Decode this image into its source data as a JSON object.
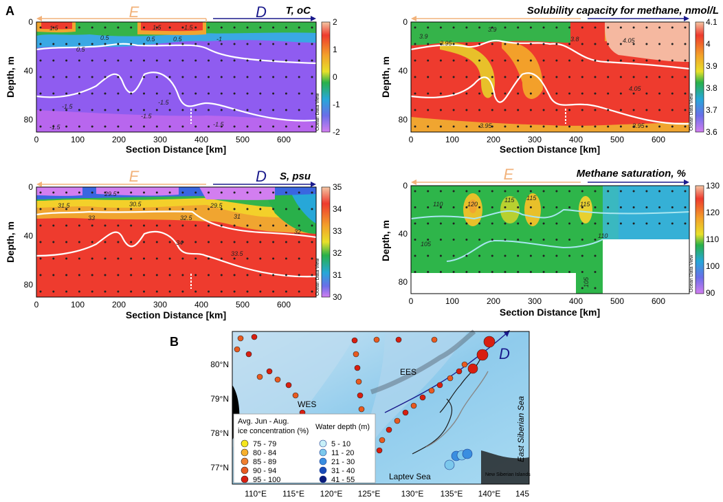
{
  "figure": {
    "panel_a_label": "A",
    "panel_b_label": "B",
    "odv_tag": "Ocean Data View",
    "transect_labels": {
      "e": "E",
      "d": "D"
    }
  },
  "colors": {
    "e_arrow": "#f2b27a",
    "d_arrow": "#1a1a8c",
    "isoline": "#ffffff"
  },
  "chart_data": [
    {
      "type": "heatmap",
      "id": "temperature",
      "title": "T, oC",
      "xlabel": "Section Distance [km]",
      "ylabel": "Depth, m",
      "xlim": [
        0,
        680
      ],
      "ylim": [
        0,
        90
      ],
      "xticks": [
        "0",
        "100",
        "200",
        "300",
        "400",
        "500",
        "600"
      ],
      "yticks": [
        "0",
        "40",
        "80"
      ],
      "colorbar": {
        "min": -2,
        "max": 2,
        "ticks": [
          "2",
          "1",
          "0",
          "-1",
          "-2"
        ]
      },
      "contour_labels": [
        "1.5",
        "0.5",
        "0.5",
        "1.5",
        "0.5",
        "0.5",
        "1.5",
        "-1",
        "-1.5",
        "-1.5",
        "-1.5",
        "-1.5",
        "-1.5"
      ]
    },
    {
      "type": "heatmap",
      "id": "solubility",
      "title": "Solubility capacity for methane, nmol/L",
      "xlabel": "Section Distance [km]",
      "ylabel": "Depth, m",
      "xlim": [
        0,
        680
      ],
      "ylim": [
        0,
        90
      ],
      "xticks": [
        "0",
        "100",
        "200",
        "300",
        "400",
        "500",
        "600"
      ],
      "yticks": [
        "0",
        "40",
        "80"
      ],
      "colorbar": {
        "min": 3.6,
        "max": 4.1,
        "ticks": [
          "4.1",
          "4",
          "3.9",
          "3.8",
          "3.7",
          "3.6"
        ]
      },
      "contour_labels": [
        "3.9",
        "3.95",
        "3.8",
        "3.9",
        "4.05",
        "4.05",
        "3.95",
        "3.95"
      ]
    },
    {
      "type": "heatmap",
      "id": "salinity",
      "title": "S, psu",
      "xlabel": "Section Distance [km]",
      "ylabel": "Depth, m",
      "xlim": [
        0,
        680
      ],
      "ylim": [
        0,
        90
      ],
      "xticks": [
        "0",
        "100",
        "200",
        "300",
        "400",
        "500",
        "600"
      ],
      "yticks": [
        "0",
        "40",
        "80"
      ],
      "colorbar": {
        "min": 30,
        "max": 35,
        "ticks": [
          "35",
          "34",
          "33",
          "32",
          "31",
          "30"
        ]
      },
      "contour_labels": [
        "29.5",
        "31.5",
        "30.5",
        "29.5",
        "33",
        "32.5",
        "31",
        "32",
        "34",
        "33.5"
      ]
    },
    {
      "type": "heatmap",
      "id": "methane_saturation",
      "title": "Methane saturation, %",
      "xlabel": "Section Distance [km]",
      "ylabel": "Depth, m",
      "xlim": [
        0,
        680
      ],
      "ylim": [
        0,
        90
      ],
      "xticks": [
        "0",
        "100",
        "200",
        "300",
        "400",
        "500",
        "600"
      ],
      "yticks": [
        "0",
        "40",
        "80"
      ],
      "colorbar": {
        "min": 90,
        "max": 130,
        "ticks": [
          "130",
          "120",
          "110",
          "100",
          "90"
        ]
      },
      "contour_labels": [
        "110",
        "120",
        "115",
        "115",
        "115",
        "110",
        "105",
        "105"
      ]
    }
  ],
  "map": {
    "lat_labels": [
      "80°N",
      "79°N",
      "78°N",
      "77°N"
    ],
    "lon_labels": [
      "110°E",
      "115°E",
      "120°E",
      "125°E",
      "130°E",
      "135°E",
      "140°E",
      "145"
    ],
    "place_labels": {
      "wes": "WES",
      "ees": "EES",
      "laptev": "Laptev Sea",
      "east_siberian": "East Siberian Sea",
      "islands": "New Siberian Islands",
      "d": "D"
    },
    "ice_legend": {
      "title_line1": "Avg. Jun - Aug.",
      "title_line2": "ice concentration (%)",
      "items": [
        {
          "label": "75 - 79",
          "color": "#f5e61e"
        },
        {
          "label": "80 - 84",
          "color": "#f7b02d"
        },
        {
          "label": "85 - 89",
          "color": "#f08030"
        },
        {
          "label": "90 - 94",
          "color": "#e85a20"
        },
        {
          "label": "95 - 100",
          "color": "#d81e10"
        }
      ]
    },
    "depth_legend": {
      "title": "Water depth (m)",
      "items": [
        {
          "label": "5 - 10",
          "color": "#c8f0f8"
        },
        {
          "label": "11 - 20",
          "color": "#7cc8ec"
        },
        {
          "label": "21 - 30",
          "color": "#3a8ee0"
        },
        {
          "label": "31 - 40",
          "color": "#1a4cb8"
        },
        {
          "label": "41 - 55",
          "color": "#0a1a7a"
        }
      ]
    }
  }
}
